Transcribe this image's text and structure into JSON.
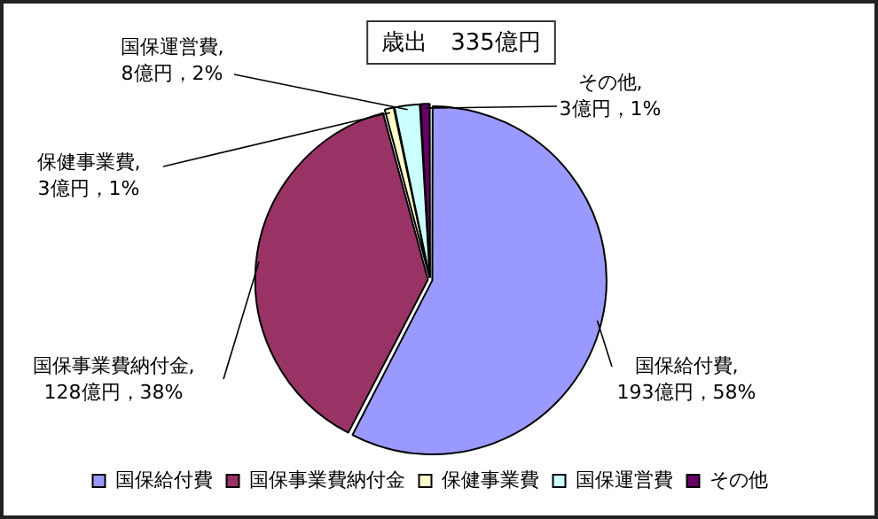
{
  "chart_data": {
    "type": "pie",
    "title": "歳出　335億円",
    "categories": [
      "国保給付費",
      "国保事業費納付金",
      "保健事業費",
      "国保運営費",
      "その他"
    ],
    "values": [
      193,
      128,
      3,
      8,
      3
    ],
    "colors": [
      "#9999ff",
      "#993366",
      "#ffffcc",
      "#ccffff",
      "#660066"
    ],
    "value_labels": [
      "国保給付費,\n193億円，58%",
      "国保事業費納付金,\n128億円，38%",
      "保健事業費,\n3億円，1%",
      "国保運営費,\n8億円，2%",
      "その他,\n3億円，1%"
    ],
    "legend": "bottom"
  }
}
